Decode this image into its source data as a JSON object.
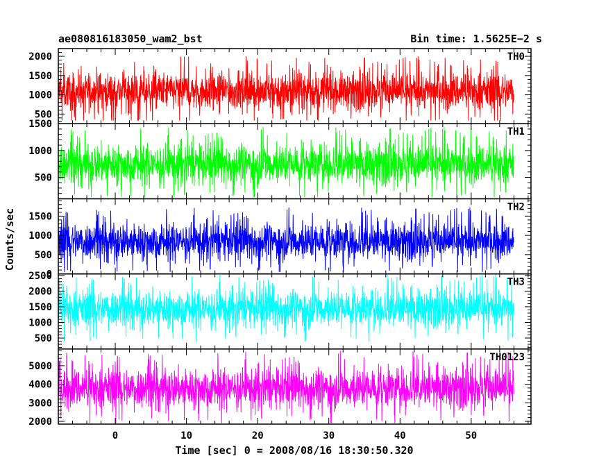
{
  "header": {
    "title": "ae080816183050_wam2_bst",
    "bin_time": "Bin time: 1.5625E−2 s"
  },
  "axes": {
    "ylabel": "Counts/sec",
    "xlabel": "Time [sec] 0 = 2008/08/16 18:30:50.320"
  },
  "chart_data": {
    "type": "line",
    "title": "ae080816183050_wam2_bst",
    "subtitle": "Bin time: 1.5625E−2 s",
    "xlabel": "Time [sec] 0 = 2008/08/16 18:30:50.320",
    "ylabel": "Counts/sec",
    "xlim": [
      -8.0,
      58.4
    ],
    "x_ticks": [
      0,
      10,
      20,
      30,
      40,
      50
    ],
    "x_data_range": [
      -8.0,
      56.0
    ],
    "bin_time": 0.015625,
    "shared_x": true,
    "series": [
      {
        "name": "TH0",
        "color": "#ff0000",
        "ylim": [
          250,
          2200
        ],
        "y_ticks": [
          500,
          1000,
          1500,
          2000
        ],
        "mean": 1100,
        "spread": 430,
        "min": 330,
        "max": 2200
      },
      {
        "name": "TH1",
        "color": "#00ff00",
        "ylim": [
          100,
          1500
        ],
        "y_ticks": [
          500,
          1000,
          1500
        ],
        "mean": 750,
        "spread": 330,
        "min": 130,
        "max": 1500
      },
      {
        "name": "TH2",
        "color": "#0000ff",
        "ylim": [
          0,
          1950
        ],
        "y_ticks": [
          0,
          500,
          1000,
          1500
        ],
        "mean": 850,
        "spread": 420,
        "min": 50,
        "max": 1950
      },
      {
        "name": "TH3",
        "color": "#00ffff",
        "ylim": [
          150,
          2550
        ],
        "y_ticks": [
          500,
          1000,
          1500,
          2000,
          2500
        ],
        "mean": 1450,
        "spread": 520,
        "min": 300,
        "max": 2550
      },
      {
        "name": "TH0123",
        "color": "#ff00ff",
        "ylim": [
          1850,
          5900
        ],
        "y_ticks": [
          2000,
          3000,
          4000,
          5000
        ],
        "mean": 3800,
        "spread": 950,
        "min": 1900,
        "max": 5800
      }
    ]
  }
}
